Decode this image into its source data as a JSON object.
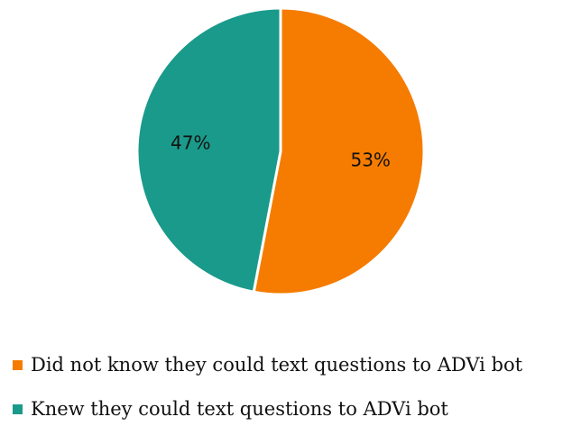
{
  "chart_data": {
    "type": "pie",
    "title": "",
    "legend_placement": "bottom",
    "slices": [
      {
        "label": "Did not know they could text questions to ADVi bot",
        "value": 53,
        "value_label": "53%",
        "color": "#F57C00"
      },
      {
        "label": "Knew they could text questions to ADVi bot",
        "value": 47,
        "value_label": "47%",
        "color": "#1A9A8A"
      }
    ]
  }
}
